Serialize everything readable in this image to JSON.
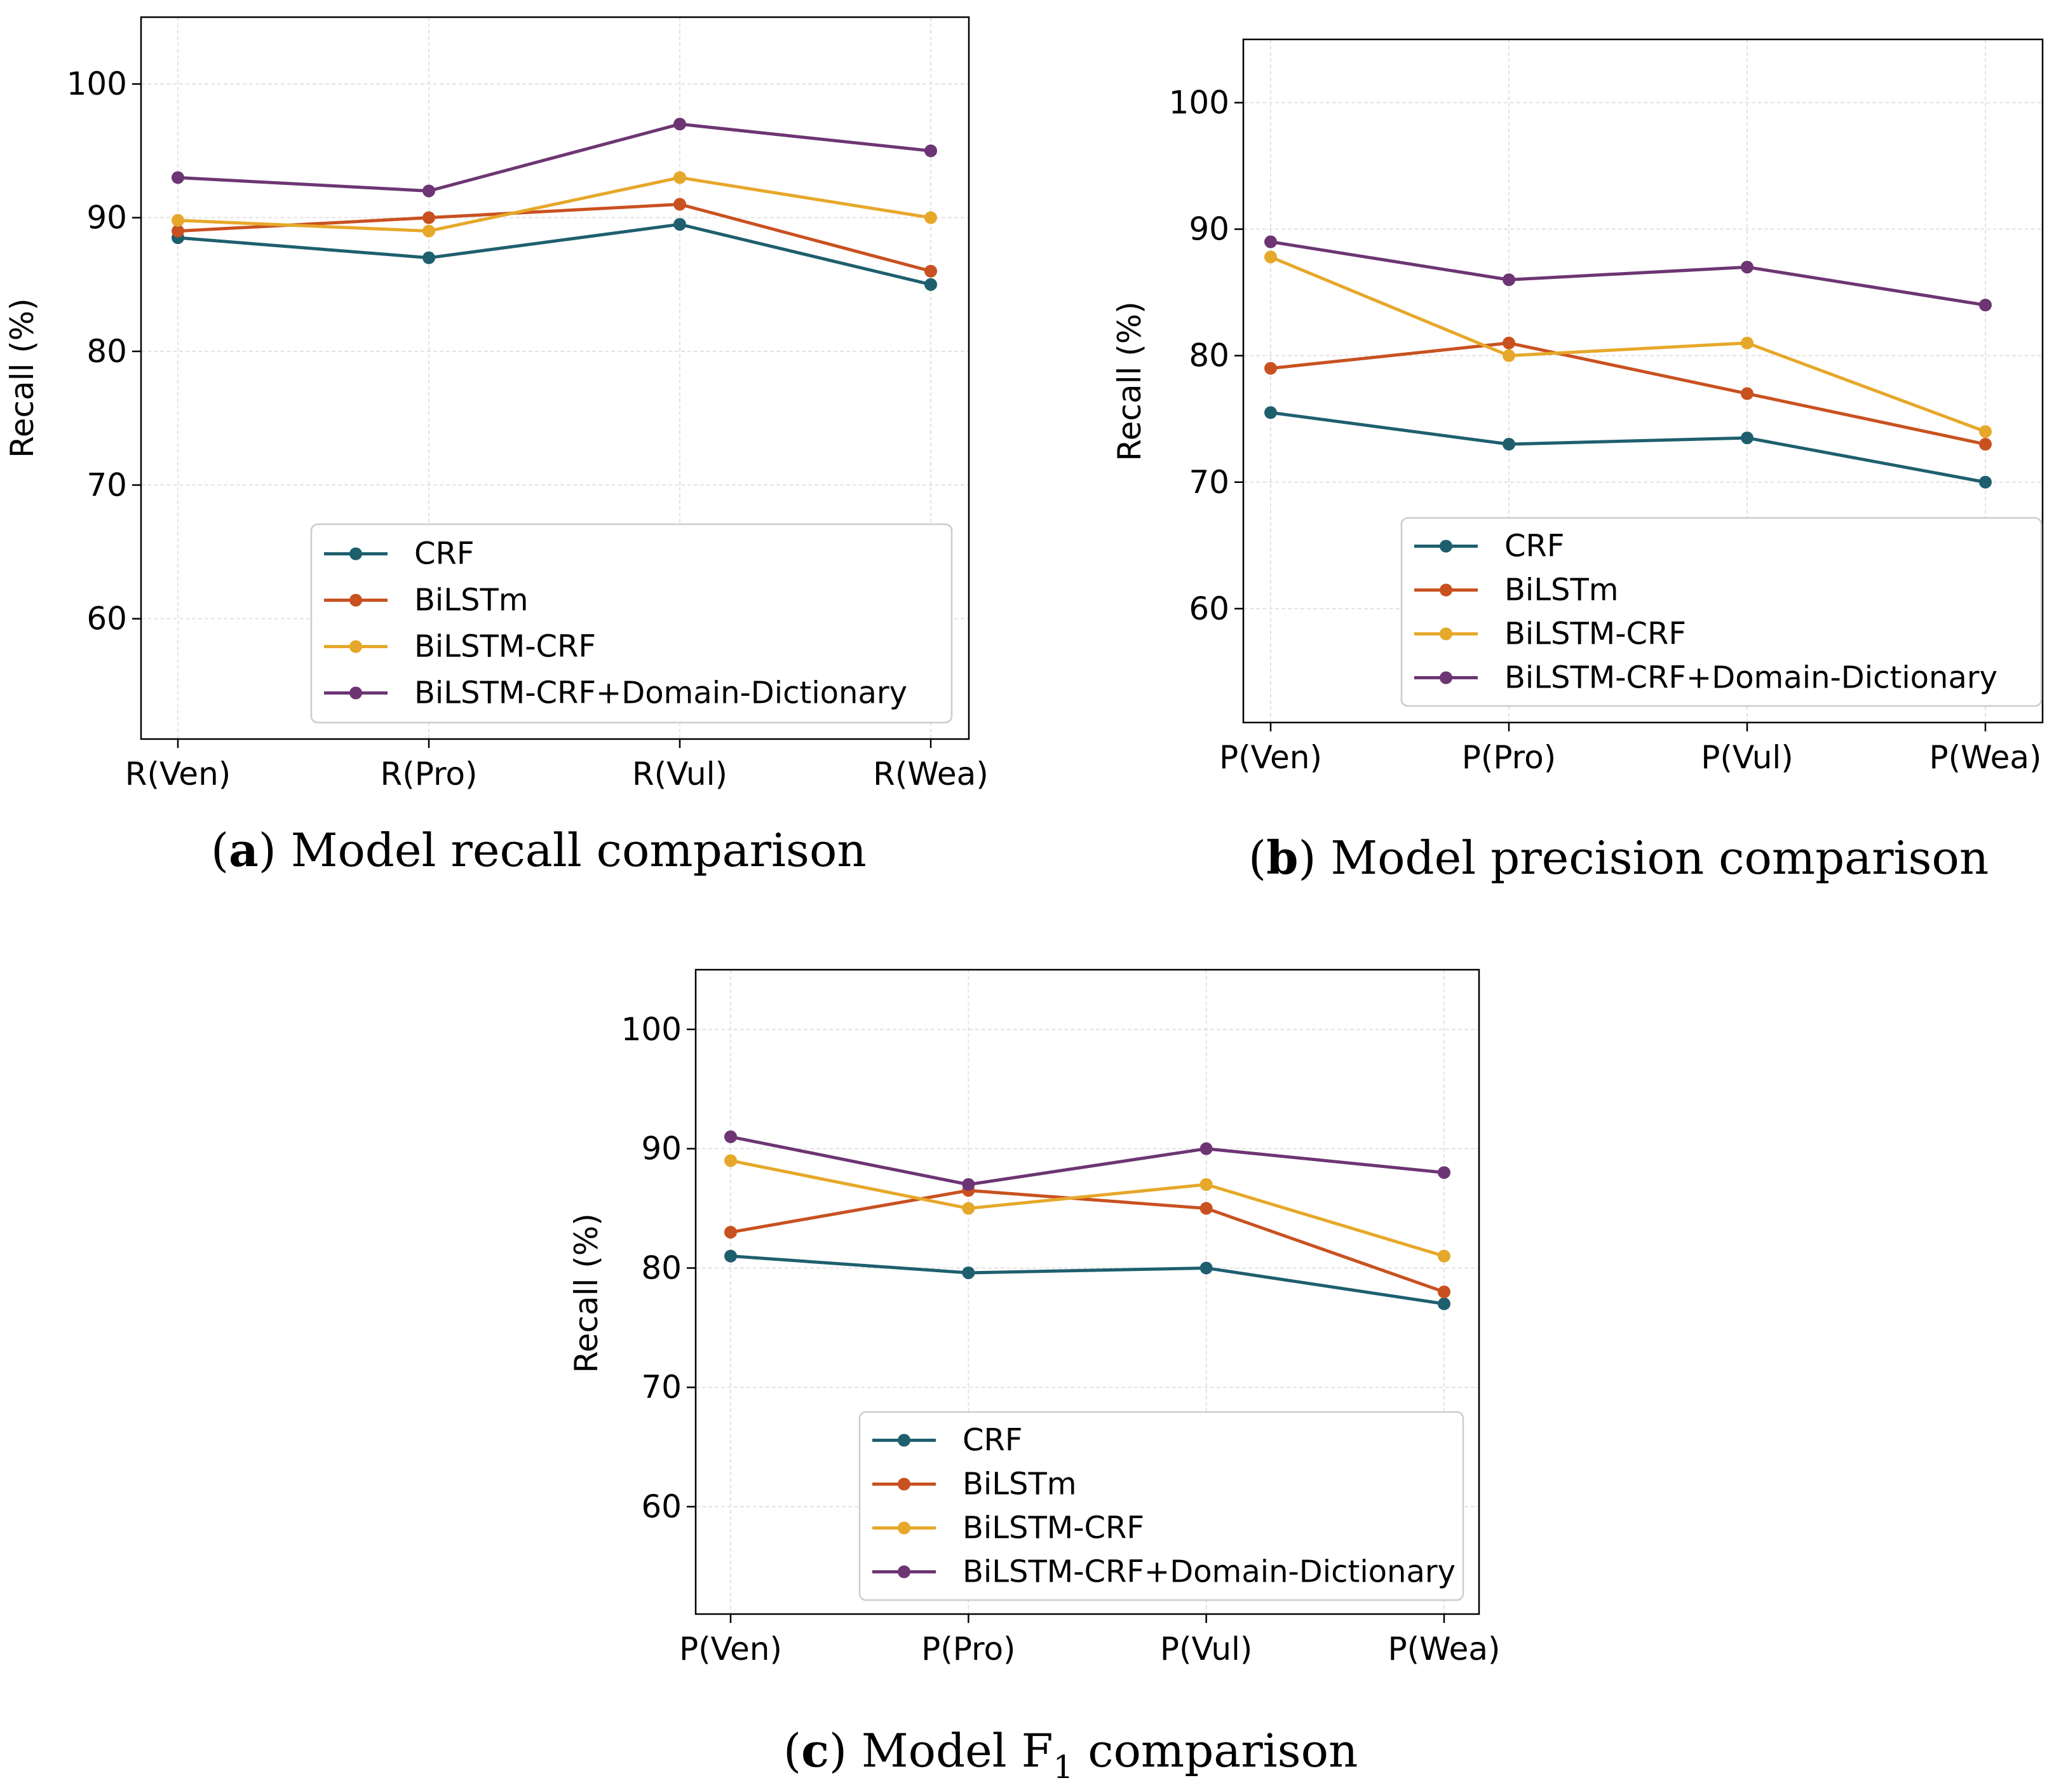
{
  "colors": {
    "CRF": "#1e5f6e",
    "BiLSTm": "#c95120",
    "BiLSTM-CRF": "#e6a82a",
    "BiLSTM-CRF+Domain-Dictionary": "#6d3573"
  },
  "chart_data": [
    {
      "type": "line",
      "title": "",
      "caption": {
        "prefix": "(",
        "letter": "a",
        "text": ") Model recall comparison"
      },
      "xlabel": "",
      "ylabel": "Recall (%)",
      "categories": [
        "R(Ven)",
        "R(Pro)",
        "R(Vul)",
        "R(Wea)"
      ],
      "yticks": [
        60,
        70,
        80,
        90,
        100
      ],
      "ylim": [
        51,
        105
      ],
      "grid": true,
      "legend": "lower-right",
      "series": [
        {
          "name": "CRF",
          "values": [
            88.5,
            87,
            89.5,
            85
          ]
        },
        {
          "name": "BiLSTm",
          "values": [
            89,
            90,
            91,
            86
          ]
        },
        {
          "name": "BiLSTM-CRF",
          "values": [
            89.8,
            89,
            93,
            90
          ]
        },
        {
          "name": "BiLSTM-CRF+Domain-Dictionary",
          "values": [
            93,
            92,
            97,
            95
          ]
        }
      ]
    },
    {
      "type": "line",
      "title": "",
      "caption": {
        "prefix": "(",
        "letter": "b",
        "text": ") Model precision comparison"
      },
      "xlabel": "",
      "ylabel": "Recall (%)",
      "categories": [
        "P(Ven)",
        "P(Pro)",
        "P(Vul)",
        "P(Wea)"
      ],
      "yticks": [
        60,
        70,
        80,
        90,
        100
      ],
      "ylim": [
        51,
        105
      ],
      "grid": true,
      "legend": "lower-right",
      "series": [
        {
          "name": "CRF",
          "values": [
            75.5,
            73,
            73.5,
            70
          ]
        },
        {
          "name": "BiLSTm",
          "values": [
            79,
            81,
            77,
            73
          ]
        },
        {
          "name": "BiLSTM-CRF",
          "values": [
            87.8,
            80,
            81,
            74
          ]
        },
        {
          "name": "BiLSTM-CRF+Domain-Dictionary",
          "values": [
            89,
            86,
            87,
            84
          ]
        }
      ]
    },
    {
      "type": "line",
      "title": "",
      "caption": {
        "prefix": "(",
        "letter": "c",
        "text": ") Model F",
        "sub": "1",
        "after": " comparison"
      },
      "xlabel": "",
      "ylabel": "Recall (%)",
      "categories": [
        "P(Ven)",
        "P(Pro)",
        "P(Vul)",
        "P(Wea)"
      ],
      "yticks": [
        60,
        70,
        80,
        90,
        100
      ],
      "ylim": [
        51,
        105
      ],
      "grid": true,
      "legend": "lower-right",
      "series": [
        {
          "name": "CRF",
          "values": [
            81,
            79.6,
            80,
            77
          ]
        },
        {
          "name": "BiLSTm",
          "values": [
            83,
            86.5,
            85,
            78
          ]
        },
        {
          "name": "BiLSTM-CRF",
          "values": [
            89,
            85,
            87,
            81
          ]
        },
        {
          "name": "BiLSTM-CRF+Domain-Dictionary",
          "values": [
            91,
            87,
            90,
            88
          ]
        }
      ]
    }
  ]
}
